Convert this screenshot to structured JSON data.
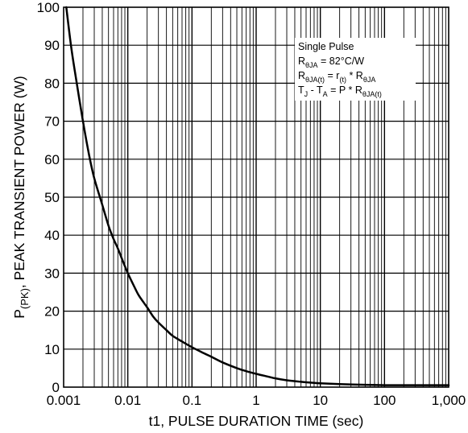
{
  "chart_data": {
    "type": "line",
    "title": "",
    "xlabel": "t1, PULSE DURATION TIME (sec)",
    "ylabel": {
      "prefix": "P",
      "subscript": "(PK)",
      "suffix": ", PEAK TRANSIENT POWER (W)"
    },
    "x_scale": "log",
    "xlim": [
      0.001,
      1000
    ],
    "ylim": [
      0,
      100
    ],
    "grid": true,
    "x_tick_labels": [
      "0.001",
      "0.01",
      "0.1",
      "1",
      "10",
      "100",
      "1,000"
    ],
    "y_tick_labels": [
      "0",
      "10",
      "20",
      "30",
      "40",
      "50",
      "60",
      "70",
      "80",
      "90",
      "100"
    ],
    "series": [
      {
        "x": [
          0.0011,
          0.0013,
          0.0015,
          0.002,
          0.0025,
          0.003,
          0.004,
          0.005,
          0.006,
          0.007,
          0.008,
          0.01,
          0.013,
          0.015,
          0.02,
          0.025,
          0.03,
          0.04,
          0.05,
          0.07,
          0.1,
          0.15,
          0.2,
          0.3,
          0.5,
          0.7,
          1,
          1.5,
          2,
          3,
          5,
          7,
          10,
          20,
          50,
          100,
          200,
          500,
          1000
        ],
        "y": [
          100,
          90,
          83,
          70,
          61,
          55,
          48,
          42.5,
          39,
          36.5,
          34,
          30,
          26,
          24,
          21,
          18.5,
          17,
          15,
          13.5,
          12,
          10.5,
          9,
          8,
          6.5,
          5,
          4.2,
          3.5,
          2.8,
          2.3,
          1.8,
          1.4,
          1.2,
          1.0,
          0.8,
          0.6,
          0.5,
          0.5,
          0.5,
          0.5
        ]
      }
    ],
    "annotation": {
      "lines": [
        [
          {
            "t": "Single Pulse"
          }
        ],
        [
          {
            "t": "R"
          },
          {
            "t": "θJA",
            "sub": true
          },
          {
            "t": " = 82°C/W"
          }
        ],
        [
          {
            "t": "R"
          },
          {
            "t": "θJA(t)",
            "sub": true
          },
          {
            "t": " = r"
          },
          {
            "t": "(t)",
            "sub": true
          },
          {
            "t": " * R"
          },
          {
            "t": "θJA",
            "sub": true
          }
        ],
        [
          {
            "t": "T"
          },
          {
            "t": "J",
            "sub": true
          },
          {
            "t": " - T"
          },
          {
            "t": "A",
            "sub": true
          },
          {
            "t": " = P * R"
          },
          {
            "t": "θJA(t)",
            "sub": true
          }
        ]
      ]
    }
  }
}
